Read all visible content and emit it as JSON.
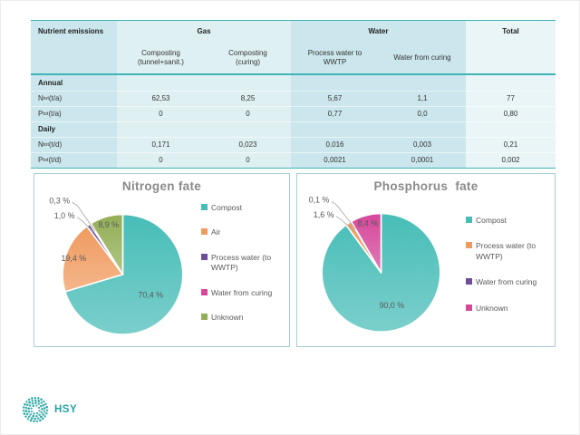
{
  "theme": {
    "accent": "#3fb4b8",
    "band_label": "#cbe6ec",
    "band_gas": "#dff0f3",
    "band_total": "#e9f5f7",
    "chart_border": "#a9cbd4",
    "title_color": "#8a8a8a",
    "text_gray": "#595959",
    "logo_teal": "#23a39f"
  },
  "table": {
    "corner_label": "Nutrient emissions",
    "groups": [
      {
        "label": "Gas"
      },
      {
        "label": "Water"
      },
      {
        "label": "Total"
      }
    ],
    "subheaders": [
      "Composting (tunnel+sanit.)",
      "Composting (curing)",
      "Process water to WWTP",
      "Water from curing"
    ],
    "rows": [
      {
        "type": "section",
        "label": "Annual"
      },
      {
        "type": "data",
        "base": "N",
        "subscript": "tot",
        "unit": "(t/a)",
        "values": [
          "62,53",
          "8,25",
          "5,67",
          "1,1",
          "77"
        ]
      },
      {
        "type": "data",
        "base": "P",
        "subscript": "tot",
        "unit": "(t/a)",
        "values": [
          "0",
          "0",
          "0,77",
          "0,0",
          "0,80"
        ]
      },
      {
        "type": "section",
        "label": "Daily"
      },
      {
        "type": "data",
        "base": "N",
        "subscript": "tot",
        "unit": "(t/d)",
        "values": [
          "0,171",
          "0,023",
          "0,016",
          "0,003",
          "0,21"
        ]
      },
      {
        "type": "data",
        "base": "P",
        "subscript": "tot",
        "unit": "(t/d)",
        "values": [
          "0",
          "0",
          "0,0021",
          "0,0001",
          "0,002"
        ]
      }
    ]
  },
  "chart_data": [
    {
      "type": "pie",
      "title": "Nitrogen fate",
      "labels": [
        "Compost",
        "Air",
        "Process water (to WWTP)",
        "Water from curing",
        "Unknown"
      ],
      "values": [
        70.4,
        19.4,
        1.0,
        0.3,
        8.9
      ],
      "value_labels": [
        "70,4 %",
        "19,4 %",
        "1,0 %",
        "0,3 %",
        "8,9 %"
      ],
      "colors": [
        "#47bdb7",
        "#f09a5e",
        "#6e4d9b",
        "#d6479b",
        "#93ae56"
      ],
      "legend_position": "right",
      "start_angle_deg": 0,
      "direction": "clockwise"
    },
    {
      "type": "pie",
      "title": "Phosphorus  fate",
      "labels": [
        "Compost",
        "Process water (to WWTP)",
        "Water from curing",
        "Unknown"
      ],
      "values": [
        90.0,
        1.6,
        0.1,
        8.4
      ],
      "value_labels": [
        "90,0 %",
        "1,6 %",
        "0,1 %",
        "8,4 %"
      ],
      "colors": [
        "#47bdb7",
        "#f09a5e",
        "#6e4d9b",
        "#d6479b"
      ],
      "legend_position": "right",
      "start_angle_deg": 0,
      "direction": "clockwise"
    }
  ],
  "logo": {
    "text": "HSY"
  }
}
